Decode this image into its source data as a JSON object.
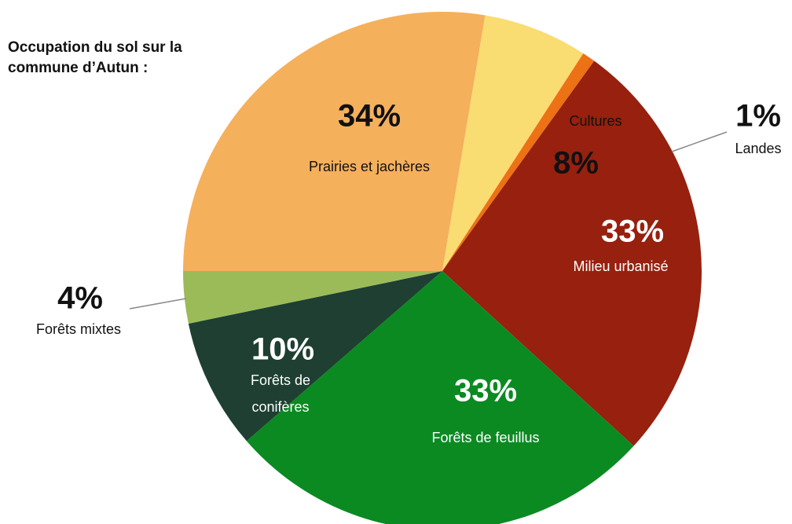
{
  "chart_data": {
    "type": "pie",
    "title": "Occupation du sol sur la commune d’Autun :",
    "categories": [
      "Prairies et jachères",
      "Cultures",
      "Landes",
      "Milieu urbanisé",
      "Forêts de feuillus",
      "Forêts de conifères",
      "Forêts mixtes"
    ],
    "values": [
      34,
      8,
      1,
      33,
      33,
      10,
      4
    ],
    "value_labels": [
      "34%",
      "8%",
      "1%",
      "33%",
      "33%",
      "10%",
      "4%"
    ],
    "colors": [
      "#f5b05c",
      "#f9dc72",
      "#ed7115",
      "#97200e",
      "#0b8a22",
      "#1e3f32",
      "#9bbb59"
    ]
  }
}
